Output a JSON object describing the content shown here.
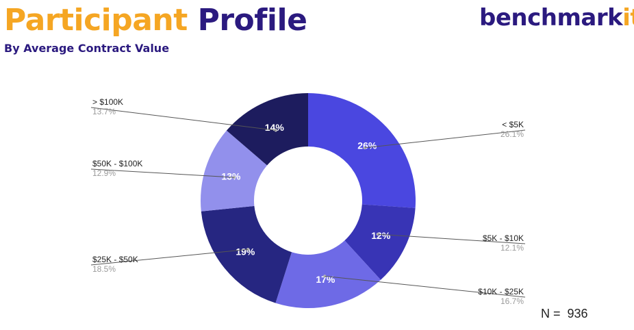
{
  "title": {
    "word1": "Participant",
    "word2": "Profile"
  },
  "subtitle": "By Average Contract Value",
  "brand": {
    "text": "benchmark",
    "accent_text": "it",
    "accent_color": "#f5a623",
    "color": "#2b1a7f"
  },
  "sample_size_label": "N =  936",
  "chart_data": {
    "type": "pie",
    "variant": "donut",
    "title": "",
    "start_angle_deg": 0,
    "direction": "clockwise",
    "slices": [
      {
        "label": "< $5K",
        "value": 26.1,
        "display": "26%",
        "callout": "26.1%",
        "color": "#4a47e0",
        "label_side": "right"
      },
      {
        "label": "$5K - $10K",
        "value": 12.1,
        "display": "12%",
        "callout": "12.1%",
        "color": "#3834b5",
        "label_side": "right"
      },
      {
        "label": "$10K - $25K",
        "value": 16.7,
        "display": "17%",
        "callout": "16.7%",
        "color": "#6e6ae6",
        "label_side": "right"
      },
      {
        "label": "$25K - $50K",
        "value": 18.5,
        "display": "19%",
        "callout": "18.5%",
        "color": "#262681",
        "label_side": "left"
      },
      {
        "label": "$50K - $100K",
        "value": 12.9,
        "display": "13%",
        "callout": "12.9%",
        "color": "#9290ec",
        "label_side": "left"
      },
      {
        "label": "> $100K",
        "value": 13.7,
        "display": "14%",
        "callout": "13.7%",
        "color": "#1d1c5e",
        "label_side": "left"
      }
    ]
  }
}
